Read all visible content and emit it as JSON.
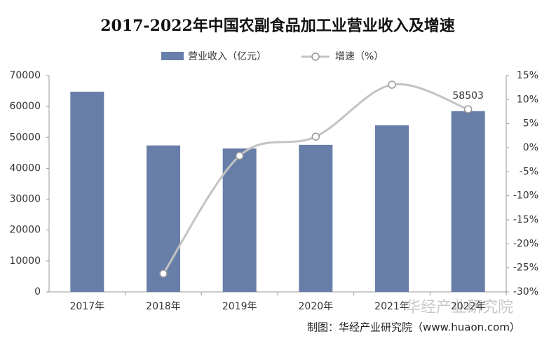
{
  "chart_data": {
    "type": "bar-line",
    "title": "2017-2022年中国农副食品加工业营业收入及增速",
    "categories": [
      "2017年",
      "2018年",
      "2019年",
      "2020年",
      "2021年",
      "2022年"
    ],
    "series": [
      {
        "name": "营业收入（亿元）",
        "type": "bar",
        "color": "#677ea8",
        "values": [
          64800,
          47400,
          46400,
          47600,
          53900,
          58503
        ],
        "value_labels": [
          null,
          null,
          null,
          null,
          null,
          "58503"
        ]
      },
      {
        "name": "增速（%）",
        "type": "line",
        "axis": "y2",
        "color": "#c3c3c3",
        "values": [
          null,
          -26.2,
          -1.7,
          2.3,
          13.1,
          8.0
        ]
      }
    ],
    "ylim": [
      0,
      70000
    ],
    "yticks": [
      0,
      10000,
      20000,
      30000,
      40000,
      50000,
      60000,
      70000
    ],
    "y2lim": [
      -30,
      15
    ],
    "y2ticks": [
      {
        "value": -30,
        "label": "-30%"
      },
      {
        "value": -25,
        "label": "-25%"
      },
      {
        "value": -20,
        "label": "-20%"
      },
      {
        "value": -15,
        "label": "-15%"
      },
      {
        "value": -10,
        "label": "-10%"
      },
      {
        "value": -5,
        "label": "-5%"
      },
      {
        "value": 0,
        "label": "0%"
      },
      {
        "value": 5,
        "label": "5%"
      },
      {
        "value": 10,
        "label": "10%"
      },
      {
        "value": 15,
        "label": "15%"
      }
    ],
    "legend": "top",
    "watermark": "华经产业研究院",
    "source": "制图：华经产业研究院（www.huaon.com）"
  }
}
